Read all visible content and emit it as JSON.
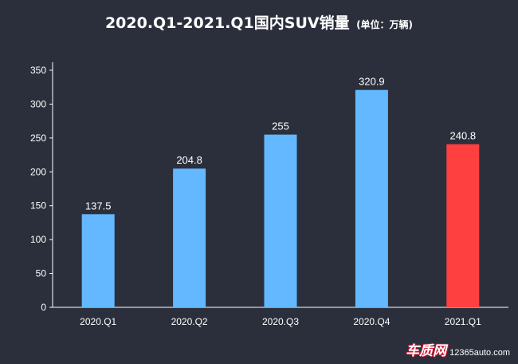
{
  "title": {
    "main": "2020.Q1-2021.Q1国内SUV销量",
    "unit": "(单位：万辆)"
  },
  "chart_data": {
    "type": "bar",
    "categories": [
      "2020.Q1",
      "2020.Q2",
      "2020.Q3",
      "2020.Q4",
      "2021.Q1"
    ],
    "values": [
      137.5,
      204.8,
      255,
      320.9,
      240.8
    ],
    "value_labels": [
      "137.5",
      "204.8",
      "255",
      "320.9",
      "240.8"
    ],
    "ylim": [
      0,
      350
    ],
    "yticks": [
      0,
      50,
      100,
      150,
      200,
      250,
      300,
      350
    ],
    "grid": false,
    "legend": "none",
    "bar_colors": [
      "#63b8ff",
      "#63b8ff",
      "#63b8ff",
      "#63b8ff",
      "#ff4040"
    ],
    "axis_color": "#ffffff"
  },
  "watermark": {
    "logo": "车质网",
    "url": "12365auto.com"
  }
}
